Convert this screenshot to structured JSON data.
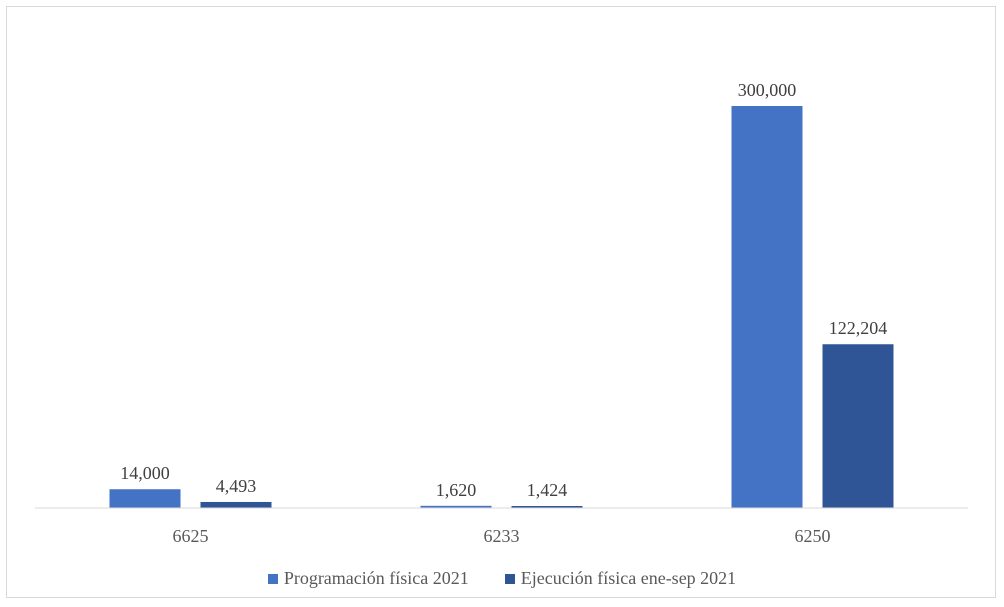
{
  "chart_data": {
    "type": "bar",
    "categories": [
      "6625",
      "6233",
      "6250"
    ],
    "series": [
      {
        "name": "Programación física 2021",
        "values": [
          14000,
          1620,
          300000
        ],
        "labels": [
          "14,000",
          "1,620",
          "300,000"
        ],
        "color": "#4472C4"
      },
      {
        "name": "Ejecución física ene-sep 2021",
        "values": [
          4493,
          1424,
          122204
        ],
        "labels": [
          "4,493",
          "1,424",
          "122,204"
        ],
        "color": "#2F5597"
      }
    ],
    "title": "",
    "xlabel": "",
    "ylabel": "",
    "ylim": [
      0,
      300000
    ],
    "grid": false,
    "legend_position": "bottom"
  }
}
